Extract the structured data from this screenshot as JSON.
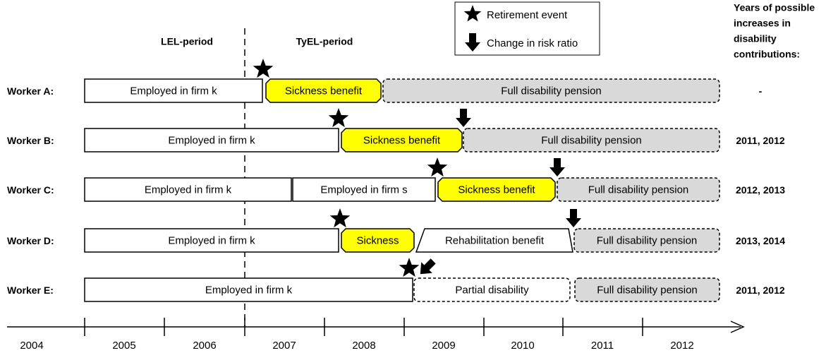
{
  "periods": [
    "LEL-period",
    "TyEL-period"
  ],
  "legend": {
    "retirement": "Retirement event",
    "risk_change": "Change in risk ratio"
  },
  "header": [
    "Years of possible",
    "increases in",
    "disability",
    "contributions:"
  ],
  "workers": [
    {
      "label": "Worker A:",
      "segments": [
        "Employed in firm k",
        "Sickness benefit",
        "Full disability pension"
      ],
      "years": "-"
    },
    {
      "label": "Worker B:",
      "segments": [
        "Employed in firm k",
        "Sickness benefit",
        "Full disability pension"
      ],
      "years": "2011, 2012"
    },
    {
      "label": "Worker C:",
      "segments": [
        "Employed in firm k",
        "Employed in firm s",
        "Sickness benefit",
        "Full disability pension"
      ],
      "years": "2012, 2013"
    },
    {
      "label": "Worker D:",
      "segments": [
        "Employed in firm k",
        "Sickness",
        "Rehabilitation benefit",
        "Full disability pension"
      ],
      "years": "2013, 2014"
    },
    {
      "label": "Worker E:",
      "segments": [
        "Employed in firm k",
        "Partial disability",
        "Full disability pension"
      ],
      "years": "2011, 2012"
    }
  ],
  "axis": [
    "2004",
    "2005",
    "2006",
    "2007",
    "2008",
    "2009",
    "2010",
    "2011",
    "2012"
  ]
}
